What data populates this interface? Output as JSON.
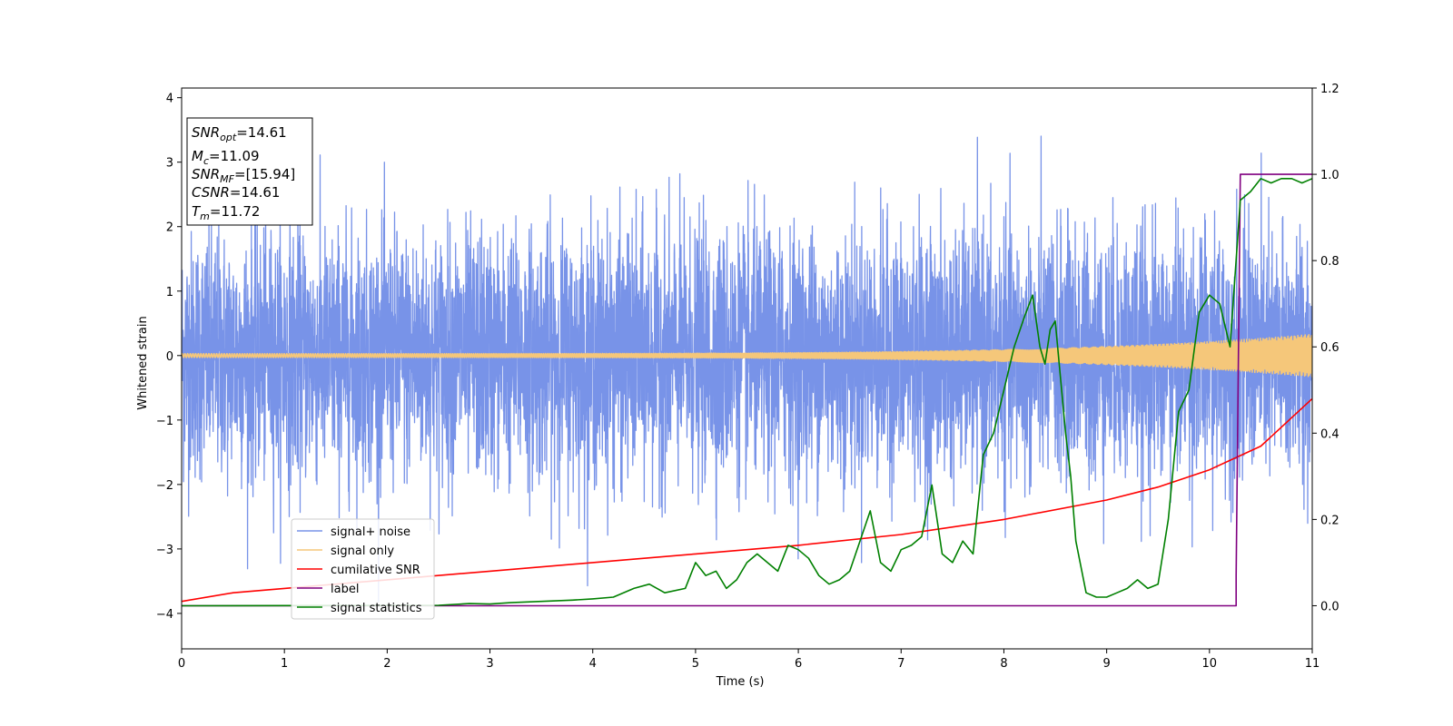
{
  "chart_data": {
    "type": "line",
    "title": "",
    "xlabel": "Time (s)",
    "ylabel": "Whitened strain",
    "xlim": [
      0,
      11
    ],
    "ylim_left": [
      -4.55,
      4.15
    ],
    "ylim_right": [
      -0.1,
      1.2
    ],
    "x_ticks": [
      0,
      1,
      2,
      3,
      4,
      5,
      6,
      7,
      8,
      9,
      10,
      11
    ],
    "y_left_ticks": [
      -4,
      -3,
      -2,
      -1,
      0,
      1,
      2,
      3,
      4
    ],
    "y_right_ticks": [
      0.0,
      0.2,
      0.4,
      0.6,
      0.8,
      1.0,
      1.2
    ],
    "grid": false,
    "legend_position": "lower-left",
    "info_box": {
      "position": "top-left",
      "snr_opt": "=14.61",
      "mc": "=11.09",
      "snr_mf": "=[15.94]",
      "csnr": "=14.61",
      "tm": "=11.72"
    },
    "series": [
      {
        "name": "signal+ noise",
        "axis": "left",
        "color": "#7893e8",
        "kind": "noise",
        "sigma": 1.0,
        "range": [
          -4.15,
          3.8
        ],
        "samples": 6000
      },
      {
        "name": "signal only",
        "axis": "left",
        "color": "#f5c77a",
        "kind": "chirp",
        "amplitude_start": 0.03,
        "amplitude_end": 0.33,
        "cycles": 420
      },
      {
        "name": "cumilative SNR",
        "axis": "right",
        "color": "#ff0000",
        "x": [
          0,
          0.5,
          1,
          2,
          3,
          4,
          5,
          6,
          7,
          8,
          9,
          9.5,
          10,
          10.5,
          11
        ],
        "y": [
          0.01,
          0.03,
          0.04,
          0.06,
          0.08,
          0.1,
          0.12,
          0.14,
          0.165,
          0.2,
          0.245,
          0.275,
          0.315,
          0.37,
          0.48
        ]
      },
      {
        "name": "label",
        "axis": "right",
        "color": "#800080",
        "x": [
          0,
          10.26,
          10.26,
          10.3,
          10.3,
          11
        ],
        "y": [
          0,
          0,
          0.07,
          1.0,
          1.0,
          1.0
        ]
      },
      {
        "name": "signal statistics",
        "axis": "right",
        "color": "#008000",
        "x": [
          0,
          2.5,
          2.8,
          3.0,
          3.2,
          3.5,
          3.8,
          4.0,
          4.2,
          4.4,
          4.55,
          4.7,
          4.9,
          5.0,
          5.1,
          5.2,
          5.3,
          5.4,
          5.5,
          5.6,
          5.7,
          5.8,
          5.9,
          6.0,
          6.1,
          6.2,
          6.3,
          6.4,
          6.5,
          6.6,
          6.7,
          6.8,
          6.9,
          7.0,
          7.1,
          7.2,
          7.3,
          7.4,
          7.5,
          7.6,
          7.7,
          7.8,
          7.9,
          8.0,
          8.1,
          8.2,
          8.28,
          8.35,
          8.4,
          8.45,
          8.5,
          8.6,
          8.65,
          8.7,
          8.8,
          8.9,
          9.0,
          9.1,
          9.2,
          9.3,
          9.4,
          9.5,
          9.6,
          9.7,
          9.8,
          9.9,
          10.0,
          10.1,
          10.2,
          10.3,
          10.4,
          10.5,
          10.6,
          10.7,
          10.8,
          10.9,
          11.0
        ],
        "y": [
          0.0,
          0.001,
          0.005,
          0.004,
          0.007,
          0.01,
          0.013,
          0.016,
          0.02,
          0.04,
          0.05,
          0.03,
          0.04,
          0.1,
          0.07,
          0.08,
          0.04,
          0.06,
          0.1,
          0.12,
          0.1,
          0.08,
          0.14,
          0.13,
          0.11,
          0.07,
          0.05,
          0.06,
          0.08,
          0.15,
          0.22,
          0.1,
          0.08,
          0.13,
          0.14,
          0.16,
          0.28,
          0.12,
          0.1,
          0.15,
          0.12,
          0.35,
          0.4,
          0.5,
          0.6,
          0.67,
          0.72,
          0.6,
          0.56,
          0.64,
          0.66,
          0.4,
          0.3,
          0.15,
          0.03,
          0.02,
          0.02,
          0.03,
          0.04,
          0.06,
          0.04,
          0.05,
          0.2,
          0.45,
          0.5,
          0.68,
          0.72,
          0.7,
          0.6,
          0.94,
          0.96,
          0.99,
          0.98,
          0.99,
          0.99,
          0.98,
          0.99
        ]
      }
    ]
  }
}
